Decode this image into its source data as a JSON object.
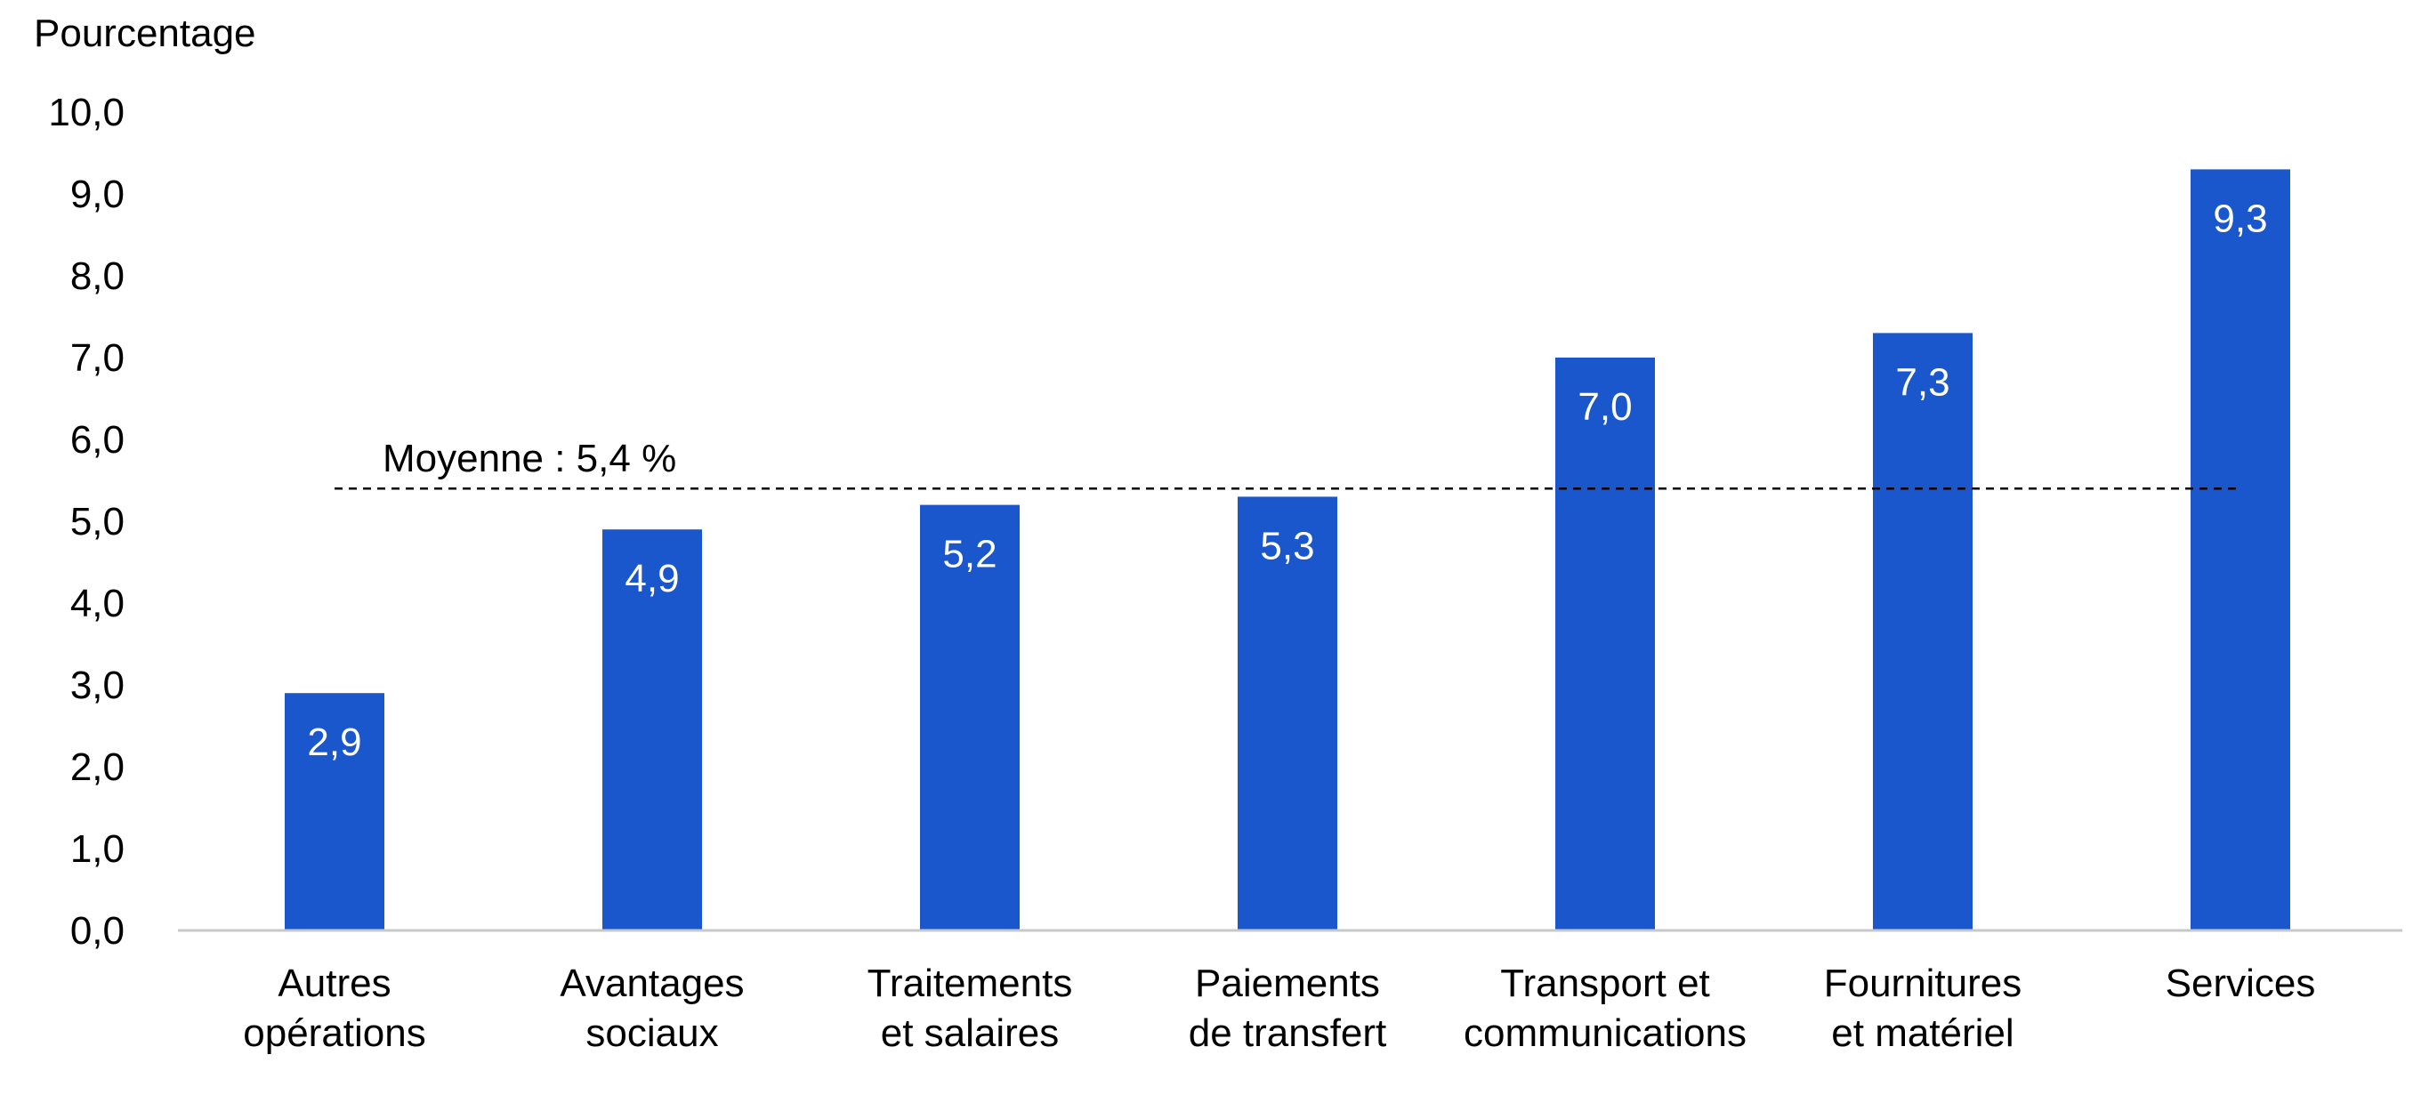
{
  "chart_data": {
    "type": "bar",
    "ylabel": "Pourcentage",
    "xlabel": "",
    "ylim": [
      0,
      10
    ],
    "y_ticks": [
      "0,0",
      "1,0",
      "2,0",
      "3,0",
      "4,0",
      "5,0",
      "6,0",
      "7,0",
      "8,0",
      "9,0",
      "10,0"
    ],
    "categories": [
      [
        "Autres",
        "opérations"
      ],
      [
        "Avantages",
        "sociaux"
      ],
      [
        "Traitements",
        "et salaires"
      ],
      [
        "Paiements",
        "de transfert"
      ],
      [
        "Transport et",
        "communications"
      ],
      [
        "Fournitures",
        "et matériel"
      ],
      [
        "Services"
      ]
    ],
    "values": [
      2.9,
      4.9,
      5.2,
      5.3,
      7.0,
      7.3,
      9.3
    ],
    "value_labels": [
      "2,9",
      "4,9",
      "5,2",
      "5,3",
      "7,0",
      "7,3",
      "9,3"
    ],
    "reference_line": {
      "value": 5.4,
      "label": "Moyenne : 5,4 %",
      "style": "dashed"
    },
    "grid": false,
    "bar_color": "#1a56cc"
  }
}
